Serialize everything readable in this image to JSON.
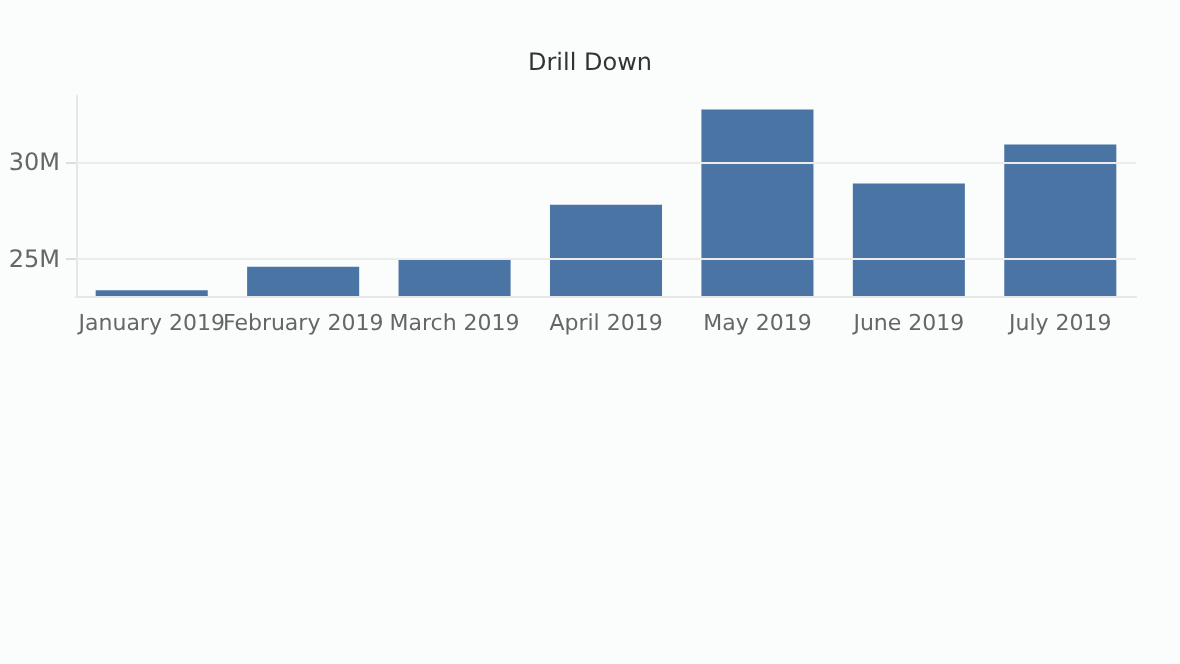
{
  "chart_data": {
    "type": "bar",
    "title": "Drill Down",
    "categories": [
      "January 2019",
      "February 2019",
      "March 2019",
      "April 2019",
      "May 2019",
      "June 2019",
      "July 2019"
    ],
    "values": [
      23.4,
      24.6,
      25.0,
      27.8,
      32.7,
      28.9,
      30.9
    ],
    "color": "#4a74a4",
    "ylim": [
      23.1,
      33.4
    ],
    "yticks": [
      {
        "value": 25,
        "label": "25M"
      },
      {
        "value": 30,
        "label": "30M"
      }
    ],
    "grid": "y"
  }
}
